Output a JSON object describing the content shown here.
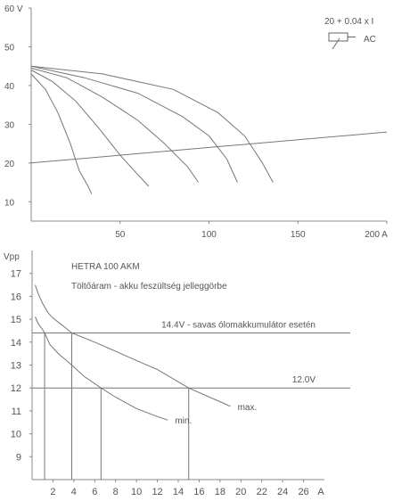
{
  "chart_data": [
    {
      "type": "line",
      "x_unit": "A",
      "y_unit": "V",
      "xlim": [
        0,
        200
      ],
      "ylim": [
        5,
        60
      ],
      "x_ticks": [
        50,
        100,
        150,
        200
      ],
      "x_tick_labels": [
        "50",
        "100",
        "150",
        "200 A"
      ],
      "y_ticks": [
        10,
        20,
        30,
        40,
        50,
        60
      ],
      "y_tick_labels": [
        "10",
        "20",
        "30",
        "40",
        "50",
        "60 V"
      ],
      "legend": {
        "formula": "20 + 0.04 x I",
        "label": "AC",
        "placement": "top-right"
      },
      "series": [
        {
          "role": "load-line",
          "x": [
            0,
            200
          ],
          "y": [
            20,
            28
          ]
        },
        {
          "role": "curve",
          "x": [
            0,
            8,
            15,
            22,
            27,
            32,
            34
          ],
          "y": [
            43,
            39,
            33,
            25,
            18,
            14,
            12
          ]
        },
        {
          "role": "curve",
          "x": [
            0,
            12,
            25,
            38,
            50,
            60,
            66
          ],
          "y": [
            44,
            41,
            36,
            29,
            22,
            17,
            14
          ]
        },
        {
          "role": "curve",
          "x": [
            0,
            20,
            40,
            60,
            75,
            88,
            94
          ],
          "y": [
            44.5,
            42,
            37,
            31,
            25,
            19,
            15
          ]
        },
        {
          "role": "curve",
          "x": [
            0,
            30,
            60,
            85,
            100,
            110,
            116
          ],
          "y": [
            45,
            42,
            38,
            32,
            27,
            21,
            15
          ]
        },
        {
          "role": "curve",
          "x": [
            0,
            40,
            80,
            105,
            120,
            130,
            136
          ],
          "y": [
            45,
            43,
            39,
            33,
            27,
            20,
            15
          ]
        }
      ]
    },
    {
      "type": "line",
      "title": "HETRA 100 AKM",
      "subtitle": "Töltőáram - akku feszültség jelleggörbe",
      "ylabel": "Vpp",
      "x_unit": "A",
      "xlim": [
        0,
        28
      ],
      "ylim": [
        8,
        18
      ],
      "x_ticks": [
        2,
        4,
        6,
        8,
        10,
        12,
        14,
        16,
        18,
        20,
        22,
        24,
        26
      ],
      "y_ticks": [
        9,
        10,
        11,
        12,
        13,
        14,
        15,
        16,
        17
      ],
      "reference_lines": [
        {
          "y": 14.4,
          "label": "14.4V - savas ólomakkumulátor esetén"
        },
        {
          "y": 12.0,
          "label": "12.0V"
        }
      ],
      "marker_lines": [
        {
          "x": 1.2,
          "y": 14.4
        },
        {
          "x": 3.8,
          "y": 14.4
        },
        {
          "x": 6.6,
          "y": 12.0
        },
        {
          "x": 15.0,
          "y": 12.0
        }
      ],
      "series": [
        {
          "name": "max.",
          "x": [
            0.3,
            0.6,
            1,
            1.5,
            2,
            3,
            3.8,
            6,
            8,
            10,
            12,
            15,
            17,
            19
          ],
          "y": [
            16.5,
            16.1,
            15.7,
            15.3,
            15.05,
            14.7,
            14.4,
            14.0,
            13.6,
            13.2,
            12.8,
            12.0,
            11.6,
            11.2
          ]
        },
        {
          "name": "min.",
          "x": [
            0.3,
            0.6,
            1,
            1.2,
            1.7,
            2.5,
            3.8,
            5,
            6.6,
            8,
            10,
            12,
            13
          ],
          "y": [
            15.1,
            14.8,
            14.55,
            14.4,
            13.9,
            13.5,
            13.0,
            12.5,
            12.0,
            11.6,
            11.1,
            10.75,
            10.6
          ]
        }
      ]
    }
  ]
}
